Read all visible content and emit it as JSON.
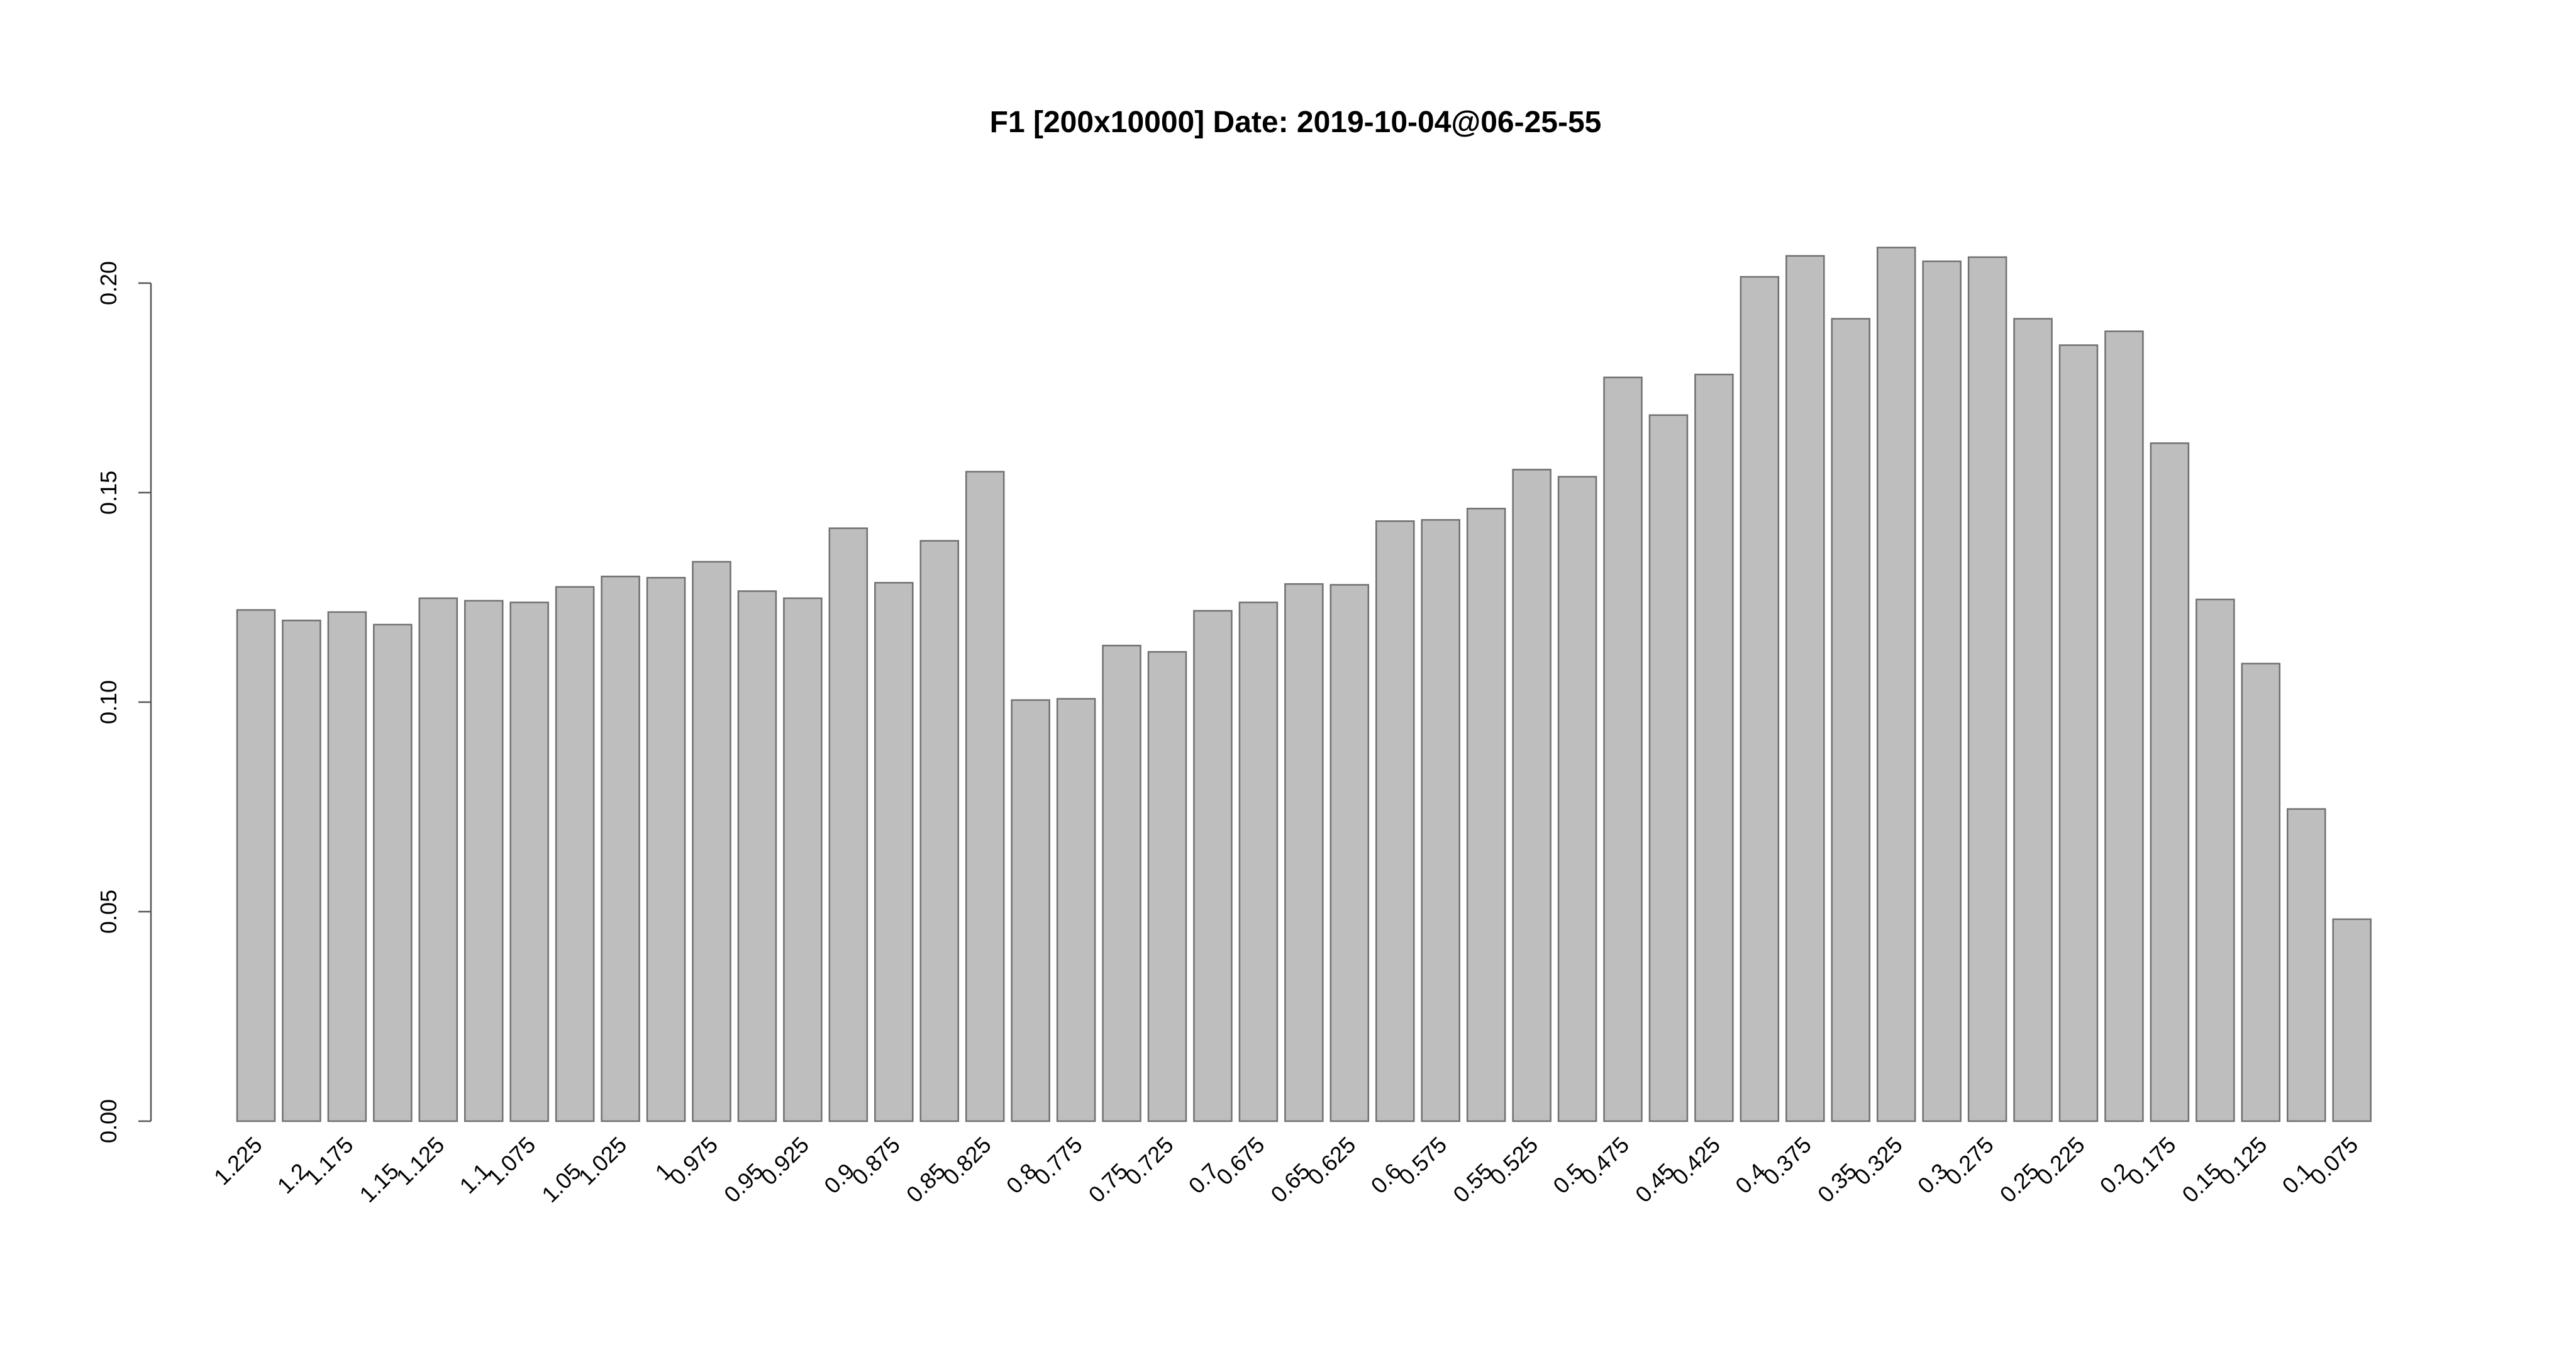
{
  "chart_data": {
    "type": "bar",
    "title": "F1 [200x10000] Date: 2019-10-04@06-25-55",
    "xlabel": "",
    "ylabel": "",
    "ylim": [
      0,
      0.21
    ],
    "yticks": [
      "0.00",
      "0.05",
      "0.10",
      "0.15",
      "0.20"
    ],
    "ytick_values": [
      0,
      0.05,
      0.1,
      0.15,
      0.2
    ],
    "bar_color": "#bebebe",
    "bar_border_color": "#707070",
    "grid": false,
    "categories": [
      "1.225",
      "1.2",
      "1.175",
      "1.15",
      "1.125",
      "1.1",
      "1.075",
      "1.05",
      "1.025",
      "1",
      "0.975",
      "0.95",
      "0.925",
      "0.9",
      "0.875",
      "0.85",
      "0.825",
      "0.8",
      "0.775",
      "0.75",
      "0.725",
      "0.7",
      "0.675",
      "0.65",
      "0.625",
      "0.6",
      "0.575",
      "0.55",
      "0.525",
      "0.5",
      "0.475",
      "0.45",
      "0.425",
      "0.4",
      "0.375",
      "0.35",
      "0.325",
      "0.3",
      "0.275",
      "0.25",
      "0.225",
      "0.2",
      "0.175",
      "0.15",
      "0.125",
      "0.1",
      "0.075"
    ],
    "values": [
      0.122,
      0.1195,
      0.1215,
      0.1185,
      0.1248,
      0.1242,
      0.1238,
      0.1275,
      0.13,
      0.1297,
      0.1335,
      0.1265,
      0.1248,
      0.1415,
      0.1285,
      0.1385,
      0.155,
      0.1005,
      0.1008,
      0.1135,
      0.112,
      0.1218,
      0.1238,
      0.1282,
      0.128,
      0.1432,
      0.1435,
      0.1462,
      0.1555,
      0.1538,
      0.1775,
      0.1685,
      0.1782,
      0.2015,
      0.2065,
      0.1915,
      0.2085,
      0.2052,
      0.2062,
      0.1915,
      0.1852,
      0.1885,
      0.1618,
      0.1245,
      0.1092,
      0.0745,
      0.0482
    ]
  }
}
